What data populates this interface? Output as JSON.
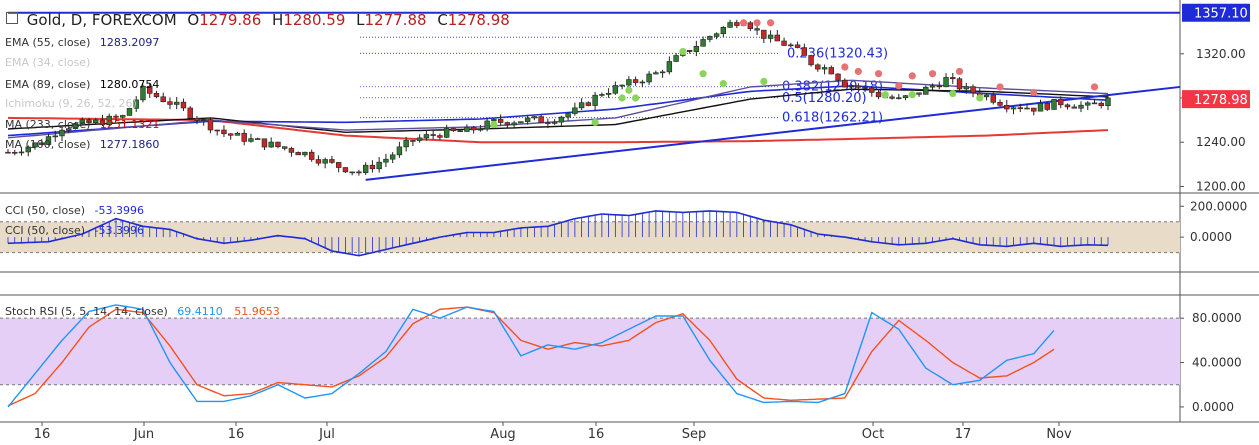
{
  "header": {
    "title": "Gold, D, FOREXCOM",
    "open_label": "O",
    "open": "1279.86",
    "high_label": "H",
    "high": "1280.59",
    "low_label": "L",
    "low": "1277.88",
    "close_label": "C",
    "close": "1278.98"
  },
  "indicators": [
    {
      "label": "EMA (55, close)",
      "value": "1283.2097",
      "color": "#1a237e"
    },
    {
      "label": "EMA (34, close)",
      "value": "",
      "color": "#c8c8c8"
    },
    {
      "label": "EMA (89, close)",
      "value": "1280.0754",
      "color": "#000000"
    },
    {
      "label": "Ichimoku (9, 26, 52, 26)",
      "value": "",
      "color": "#c8c8c8"
    },
    {
      "label": "MA (233, close)",
      "value": "1251.1321",
      "color": "#dd0000"
    },
    {
      "label": "MA (100, close)",
      "value": "1277.1860",
      "color": "#1a237e"
    }
  ],
  "price_axis": {
    "ticks": [
      "1320.00",
      "1280.00",
      "1240.00",
      "1200.00"
    ],
    "badge_top": "1357.10",
    "badge_last": "1278.98",
    "colors": {
      "badge_top": "#1f2bd6",
      "badge_last": "#f23645"
    }
  },
  "fibonacci": [
    {
      "label": "0.236(1320.43)"
    },
    {
      "label": "0.382(1290.18)"
    },
    {
      "label": "0.5(1280.20)"
    },
    {
      "label": "0.618(1262.21)"
    }
  ],
  "cci_panel": {
    "legend1": {
      "label": "CCI (50, close)",
      "value": "-53.3996"
    },
    "legend2": {
      "label": "CCI (50, close)",
      "value": "-53.3996"
    },
    "ticks": [
      "200.0000",
      "0.0000"
    ]
  },
  "stoch_panel": {
    "legend": {
      "label": "Stoch RSI (5, 5, 14, 14, close)",
      "k": "69.4110",
      "d": "51.9653"
    },
    "ticks": [
      "80.0000",
      "40.0000",
      "0.0000"
    ],
    "colors": {
      "k": "#2196f3",
      "d": "#f4511e"
    }
  },
  "time_axis": {
    "labels": [
      "16",
      "Jun",
      "16",
      "Jul",
      "Aug",
      "16",
      "Sep",
      "Oct",
      "17",
      "Nov"
    ]
  },
  "chart_data": {
    "type": "candlestick",
    "title": "",
    "bars": 130,
    "price_ylim": [
      1200,
      1360
    ],
    "ohlc_last": {
      "open": 1279.86,
      "high": 1280.59,
      "low": 1277.88,
      "close": 1278.98
    },
    "trend_high": 1357.1,
    "price_path": [
      [
        0,
        1231
      ],
      [
        5,
        1240
      ],
      [
        8,
        1254
      ],
      [
        13,
        1258
      ],
      [
        17,
        1263
      ],
      [
        20,
        1287
      ],
      [
        24,
        1276
      ],
      [
        28,
        1262
      ],
      [
        32,
        1248
      ],
      [
        36,
        1242
      ],
      [
        40,
        1236
      ],
      [
        44,
        1230
      ],
      [
        48,
        1220
      ],
      [
        52,
        1213
      ],
      [
        56,
        1225
      ],
      [
        60,
        1242
      ],
      [
        64,
        1248
      ],
      [
        68,
        1250
      ],
      [
        72,
        1258
      ],
      [
        76,
        1260
      ],
      [
        80,
        1260
      ],
      [
        84,
        1268
      ],
      [
        88,
        1285
      ],
      [
        92,
        1293
      ],
      [
        96,
        1302
      ],
      [
        100,
        1320
      ],
      [
        104,
        1336
      ],
      [
        107,
        1347
      ],
      [
        109,
        1352
      ],
      [
        111,
        1340
      ],
      [
        113,
        1333
      ],
      [
        116,
        1327
      ],
      [
        119,
        1312
      ],
      [
        122,
        1305
      ],
      [
        124,
        1293
      ],
      [
        126,
        1290
      ],
      [
        129,
        1283
      ],
      [
        132,
        1278
      ],
      [
        135,
        1285
      ],
      [
        139,
        1297
      ],
      [
        142,
        1287
      ],
      [
        145,
        1282
      ],
      [
        148,
        1274
      ],
      [
        152,
        1271
      ],
      [
        156,
        1276
      ],
      [
        160,
        1272
      ],
      [
        163,
        1278
      ]
    ],
    "ema55": [
      [
        0,
        1244
      ],
      [
        30,
        1260
      ],
      [
        50,
        1251
      ],
      [
        70,
        1254
      ],
      [
        90,
        1262
      ],
      [
        110,
        1290
      ],
      [
        125,
        1296
      ],
      [
        145,
        1289
      ],
      [
        163,
        1284
      ]
    ],
    "ema89": [
      [
        0,
        1252
      ],
      [
        30,
        1262
      ],
      [
        50,
        1249
      ],
      [
        70,
        1252
      ],
      [
        90,
        1256
      ],
      [
        110,
        1279
      ],
      [
        125,
        1288
      ],
      [
        145,
        1286
      ],
      [
        163,
        1281
      ]
    ],
    "ma233": [
      [
        0,
        1262
      ],
      [
        30,
        1260
      ],
      [
        50,
        1246
      ],
      [
        70,
        1240
      ],
      [
        90,
        1240
      ],
      [
        110,
        1241
      ],
      [
        125,
        1243
      ],
      [
        145,
        1246
      ],
      [
        163,
        1251
      ]
    ],
    "ma100": [
      [
        0,
        1246
      ],
      [
        30,
        1259
      ],
      [
        50,
        1258
      ],
      [
        70,
        1261
      ],
      [
        90,
        1270
      ],
      [
        110,
        1286
      ],
      [
        125,
        1291
      ],
      [
        145,
        1284
      ],
      [
        163,
        1278
      ]
    ],
    "support_line": [
      [
        53,
        1206
      ],
      [
        172,
        1290
      ]
    ],
    "resistance_line": [
      [
        0,
        1357
      ],
      [
        172,
        1357
      ]
    ],
    "psar_above": [
      [
        109,
        1348
      ],
      [
        111,
        1348
      ],
      [
        113,
        1348
      ],
      [
        124,
        1308
      ],
      [
        126,
        1304
      ],
      [
        129,
        1302
      ],
      [
        132,
        1291
      ],
      [
        134,
        1300
      ],
      [
        137,
        1302
      ],
      [
        141,
        1304
      ],
      [
        147,
        1290
      ],
      [
        152,
        1285
      ],
      [
        161,
        1290
      ]
    ],
    "psar_below": [
      [
        72,
        1256
      ],
      [
        87,
        1258
      ],
      [
        91,
        1280
      ],
      [
        92,
        1287
      ],
      [
        93,
        1280
      ],
      [
        100,
        1322
      ],
      [
        103,
        1302
      ],
      [
        106,
        1293
      ],
      [
        112,
        1295
      ],
      [
        130,
        1283
      ],
      [
        134,
        1283
      ],
      [
        140,
        1284
      ],
      [
        144,
        1280
      ]
    ],
    "cci": [
      [
        0,
        -40
      ],
      [
        6,
        -30
      ],
      [
        11,
        20
      ],
      [
        16,
        120
      ],
      [
        20,
        70
      ],
      [
        24,
        50
      ],
      [
        28,
        -10
      ],
      [
        32,
        -40
      ],
      [
        36,
        -20
      ],
      [
        40,
        10
      ],
      [
        44,
        -10
      ],
      [
        48,
        -90
      ],
      [
        52,
        -120
      ],
      [
        56,
        -80
      ],
      [
        60,
        -40
      ],
      [
        64,
        0
      ],
      [
        68,
        30
      ],
      [
        72,
        30
      ],
      [
        76,
        60
      ],
      [
        80,
        70
      ],
      [
        84,
        120
      ],
      [
        88,
        150
      ],
      [
        92,
        140
      ],
      [
        96,
        170
      ],
      [
        100,
        160
      ],
      [
        104,
        170
      ],
      [
        108,
        160
      ],
      [
        112,
        110
      ],
      [
        116,
        80
      ],
      [
        120,
        20
      ],
      [
        124,
        0
      ],
      [
        128,
        -30
      ],
      [
        132,
        -50
      ],
      [
        136,
        -40
      ],
      [
        140,
        -10
      ],
      [
        144,
        -50
      ],
      [
        148,
        -60
      ],
      [
        152,
        -40
      ],
      [
        156,
        -60
      ],
      [
        160,
        -50
      ],
      [
        163,
        -53
      ]
    ],
    "cci_ylim": [
      -200,
      260
    ],
    "stoch_k": [
      [
        0,
        0
      ],
      [
        4,
        30
      ],
      [
        8,
        60
      ],
      [
        12,
        86
      ],
      [
        16,
        92
      ],
      [
        20,
        88
      ],
      [
        24,
        40
      ],
      [
        28,
        5
      ],
      [
        32,
        5
      ],
      [
        36,
        10
      ],
      [
        40,
        20
      ],
      [
        44,
        8
      ],
      [
        48,
        12
      ],
      [
        52,
        30
      ],
      [
        56,
        50
      ],
      [
        60,
        88
      ],
      [
        64,
        80
      ],
      [
        68,
        90
      ],
      [
        72,
        86
      ],
      [
        76,
        46
      ],
      [
        80,
        56
      ],
      [
        84,
        52
      ],
      [
        88,
        58
      ],
      [
        92,
        70
      ],
      [
        96,
        82
      ],
      [
        100,
        82
      ],
      [
        104,
        42
      ],
      [
        108,
        12
      ],
      [
        112,
        4
      ],
      [
        116,
        5
      ],
      [
        120,
        4
      ],
      [
        124,
        12
      ],
      [
        128,
        85
      ],
      [
        132,
        70
      ],
      [
        136,
        35
      ],
      [
        140,
        20
      ],
      [
        144,
        24
      ],
      [
        148,
        42
      ],
      [
        152,
        48
      ],
      [
        155,
        69
      ]
    ],
    "stoch_d": [
      [
        0,
        1
      ],
      [
        4,
        12
      ],
      [
        8,
        40
      ],
      [
        12,
        72
      ],
      [
        16,
        88
      ],
      [
        20,
        85
      ],
      [
        24,
        55
      ],
      [
        28,
        20
      ],
      [
        32,
        10
      ],
      [
        36,
        12
      ],
      [
        40,
        22
      ],
      [
        44,
        20
      ],
      [
        48,
        18
      ],
      [
        52,
        28
      ],
      [
        56,
        45
      ],
      [
        60,
        75
      ],
      [
        64,
        88
      ],
      [
        68,
        90
      ],
      [
        72,
        85
      ],
      [
        76,
        60
      ],
      [
        80,
        52
      ],
      [
        84,
        58
      ],
      [
        88,
        55
      ],
      [
        92,
        60
      ],
      [
        96,
        76
      ],
      [
        100,
        84
      ],
      [
        104,
        60
      ],
      [
        108,
        25
      ],
      [
        112,
        8
      ],
      [
        116,
        6
      ],
      [
        120,
        7
      ],
      [
        124,
        8
      ],
      [
        128,
        50
      ],
      [
        132,
        78
      ],
      [
        136,
        60
      ],
      [
        140,
        40
      ],
      [
        144,
        26
      ],
      [
        148,
        28
      ],
      [
        152,
        40
      ],
      [
        155,
        52
      ]
    ],
    "stoch_ylim": [
      -10,
      100
    ],
    "stoch_band": [
      20,
      80
    ],
    "colors": {
      "up_candle": "#ffffff",
      "down_candle": "#b22222",
      "up_body": "#2e7d32",
      "down_body": "#c62828",
      "ema55": "#1a237e",
      "ema89": "#111111",
      "ma233": "#e53935",
      "ma100": "#1f2bd6",
      "psar_above": "#e57373",
      "psar_below": "#8bd45b",
      "cci_line": "#1f2bd6",
      "cci_band": "#e8dcc8",
      "stoch_band": "#e6cff7",
      "fib": "#1f2bd6"
    }
  }
}
